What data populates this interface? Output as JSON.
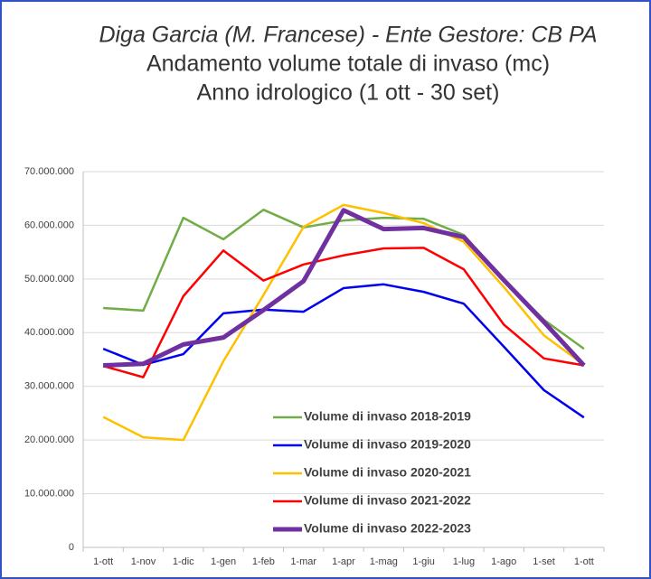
{
  "chart_data": {
    "type": "line",
    "title": "Diga Garcia (M. Francese) - Ente Gestore: CB PA",
    "subtitle": [
      "Andamento volume totale di invaso (mc)",
      "Anno idrologico (1 ott - 30 set)"
    ],
    "categories": [
      "1-ott",
      "1-nov",
      "1-dic",
      "1-gen",
      "1-feb",
      "1-mar",
      "1-apr",
      "1-mag",
      "1-giu",
      "1-lug",
      "1-ago",
      "1-set",
      "1-ott"
    ],
    "series": [
      {
        "name": "Volume di invaso 2018-2019",
        "color": "#70ad47",
        "values": [
          44600000,
          44100000,
          61400000,
          57400000,
          62900000,
          59600000,
          60900000,
          61400000,
          61200000,
          58200000,
          49800000,
          42400000,
          37000000
        ]
      },
      {
        "name": "Volume di invaso 2019-2020",
        "color": "#0000ee",
        "values": [
          37000000,
          34000000,
          36000000,
          43600000,
          44300000,
          43900000,
          48300000,
          49000000,
          47600000,
          45400000,
          37400000,
          29300000,
          24200000
        ]
      },
      {
        "name": "Volume di invaso 2020-2021",
        "color": "#ffc000",
        "values": [
          24300000,
          20500000,
          20000000,
          34700000,
          47000000,
          59700000,
          63800000,
          62300000,
          60400000,
          56900000,
          48500000,
          39500000,
          34000000
        ]
      },
      {
        "name": "Volume di invaso 2021-2022",
        "color": "#ff0000",
        "values": [
          33800000,
          31700000,
          46800000,
          55300000,
          49700000,
          52700000,
          54400000,
          55700000,
          55800000,
          51800000,
          41500000,
          35200000,
          33900000
        ]
      },
      {
        "name": "Volume di invaso 2022-2023",
        "color": "#7030a0",
        "values": [
          33900000,
          34200000,
          37800000,
          39100000,
          44200000,
          49600000,
          62800000,
          59300000,
          59500000,
          57800000,
          49800000,
          42000000,
          33900000
        ]
      }
    ],
    "ylim": [
      0,
      70000000
    ],
    "yticks": [
      0,
      {
        "value": 10000000,
        "label": "10.000.000"
      },
      {
        "value": 20000000,
        "label": "20.000.000"
      },
      {
        "value": 30000000,
        "label": "30.000.000"
      },
      {
        "value": 40000000,
        "label": "40.000.000"
      },
      {
        "value": 50000000,
        "label": "50.000.000"
      },
      {
        "value": 60000000,
        "label": "60.000.000"
      },
      {
        "value": 70000000,
        "label": "70.000.000"
      }
    ],
    "grid": true
  }
}
